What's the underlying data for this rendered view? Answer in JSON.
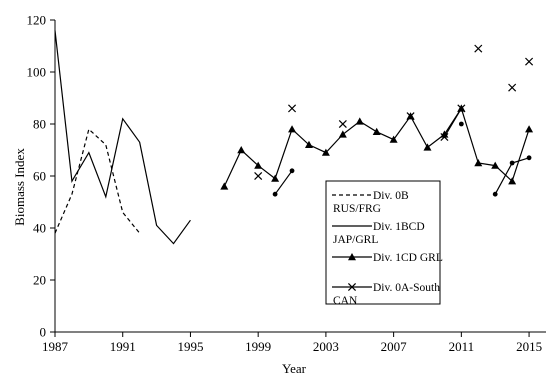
{
  "chart_data": {
    "type": "line",
    "title": "",
    "xlabel": "Year",
    "ylabel": "Biomass Index",
    "xlim": [
      1987,
      2016
    ],
    "ylim": [
      0,
      120
    ],
    "x_ticks": [
      1987,
      1991,
      1995,
      1999,
      2003,
      2007,
      2011,
      2015
    ],
    "y_ticks": [
      0,
      20,
      40,
      60,
      80,
      100,
      120
    ],
    "grid": false,
    "legend_position": "center-right",
    "series": [
      {
        "name": "Div. 0B RUS/FRG",
        "style": "dashed",
        "marker": "none",
        "segments": [
          [
            [
              1987,
              38
            ],
            [
              1988,
              53
            ],
            [
              1989,
              78
            ],
            [
              1990,
              72
            ],
            [
              1991,
              46
            ],
            [
              1992,
              38
            ]
          ]
        ]
      },
      {
        "name": "Div. 1BCD JAP/GRL",
        "style": "solid",
        "marker": "none",
        "segments": [
          [
            [
              1987,
              116
            ],
            [
              1988,
              58
            ],
            [
              1989,
              69
            ],
            [
              1990,
              52
            ],
            [
              1991,
              82
            ],
            [
              1992,
              73
            ],
            [
              1993,
              41
            ],
            [
              1994,
              34
            ],
            [
              1995,
              43
            ]
          ]
        ]
      },
      {
        "name": "Div. 1CD GRL",
        "style": "solid",
        "marker": "triangle",
        "segments": [
          [
            [
              1997,
              56
            ],
            [
              1998,
              70
            ],
            [
              1999,
              64
            ],
            [
              2000,
              59
            ],
            [
              2001,
              78
            ],
            [
              2002,
              72
            ],
            [
              2003,
              69
            ],
            [
              2004,
              76
            ],
            [
              2005,
              81
            ],
            [
              2006,
              77
            ],
            [
              2007,
              74
            ],
            [
              2008,
              83
            ],
            [
              2009,
              71
            ],
            [
              2010,
              76
            ],
            [
              2011,
              86
            ],
            [
              2012,
              65
            ],
            [
              2013,
              64
            ],
            [
              2014,
              58
            ],
            [
              2015,
              78
            ]
          ]
        ]
      },
      {
        "name": "Div. 0A-South CAN",
        "style": "solid",
        "marker": "cross",
        "segments": [
          [
            [
              2010,
              75
            ],
            [
              2011,
              86
            ]
          ]
        ],
        "points": [
          [
            1999,
            60
          ],
          [
            2001,
            86
          ],
          [
            2004,
            80
          ],
          [
            2008,
            83
          ],
          [
            2012,
            109
          ],
          [
            2014,
            94
          ],
          [
            2015,
            104
          ]
        ]
      },
      {
        "name": "",
        "style": "solid",
        "marker": "dot",
        "segments": [
          [
            [
              2000,
              53
            ],
            [
              2001,
              62
            ]
          ],
          [
            [
              2013,
              53
            ],
            [
              2014,
              65
            ],
            [
              2015,
              67
            ]
          ]
        ],
        "points": [
          [
            2011,
            80
          ]
        ]
      }
    ],
    "legend": [
      {
        "line1": "Div. 0B",
        "line2": "RUS/FRG",
        "style": "dashed",
        "marker": "none"
      },
      {
        "line1": "Div. 1BCD",
        "line2": "JAP/GRL",
        "style": "solid",
        "marker": "none"
      },
      {
        "line1": "Div. 1CD GRL",
        "line2": "",
        "style": "solid",
        "marker": "triangle"
      },
      {
        "line1": "Div. 0A-South",
        "line2": "CAN",
        "style": "solid",
        "marker": "cross"
      }
    ],
    "colors": {
      "line": "#000000",
      "background": "#ffffff"
    }
  }
}
